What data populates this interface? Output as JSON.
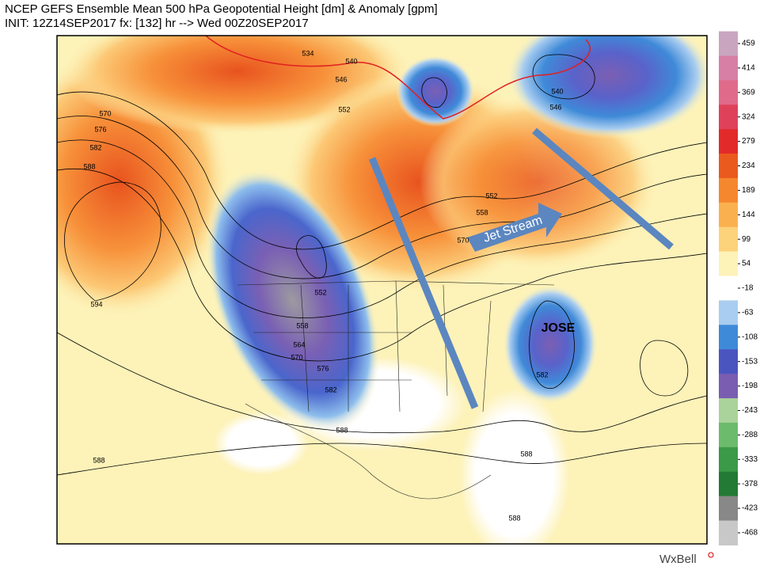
{
  "header": {
    "title": "NCEP GEFS Ensemble Mean 500 hPa Geopotential Height [dm] & Anomaly [gpm]",
    "subtitle": "INIT: 12Z14SEP2017 fx: [132] hr --> Wed 00Z20SEP2017"
  },
  "contour_labels": [
    534,
    540,
    546,
    552,
    570,
    576,
    582,
    588,
    594,
    552,
    558,
    564,
    570,
    576,
    582,
    588,
    588,
    540,
    546,
    552,
    558,
    570,
    582,
    588,
    588
  ],
  "colorbar": {
    "ticks": [
      459,
      414,
      369,
      324,
      279,
      234,
      189,
      144,
      99,
      54,
      -18,
      -63,
      -108,
      -153,
      -198,
      -243,
      -288,
      -333,
      -378,
      -423,
      -468
    ]
  },
  "annotations": {
    "jet_stream": "Jet Stream",
    "storm": "JOSE"
  },
  "logo": "WxBell"
}
